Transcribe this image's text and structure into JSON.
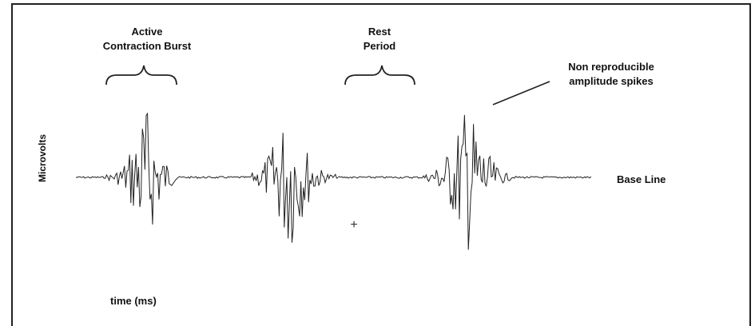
{
  "diagram": {
    "labels": {
      "active_line1": "Active",
      "active_line2": "Contraction Burst",
      "rest_line1": "Rest",
      "rest_line2": "Period",
      "spikes_line1": "Non reproducible",
      "spikes_line2": "amplitude spikes",
      "baseline": "Base Line",
      "ylabel": "Microvolts",
      "xlabel": "time (ms)"
    },
    "marker": "+",
    "colors": {
      "signal": "#222222",
      "text": "#111111",
      "frame": "#222222"
    }
  }
}
